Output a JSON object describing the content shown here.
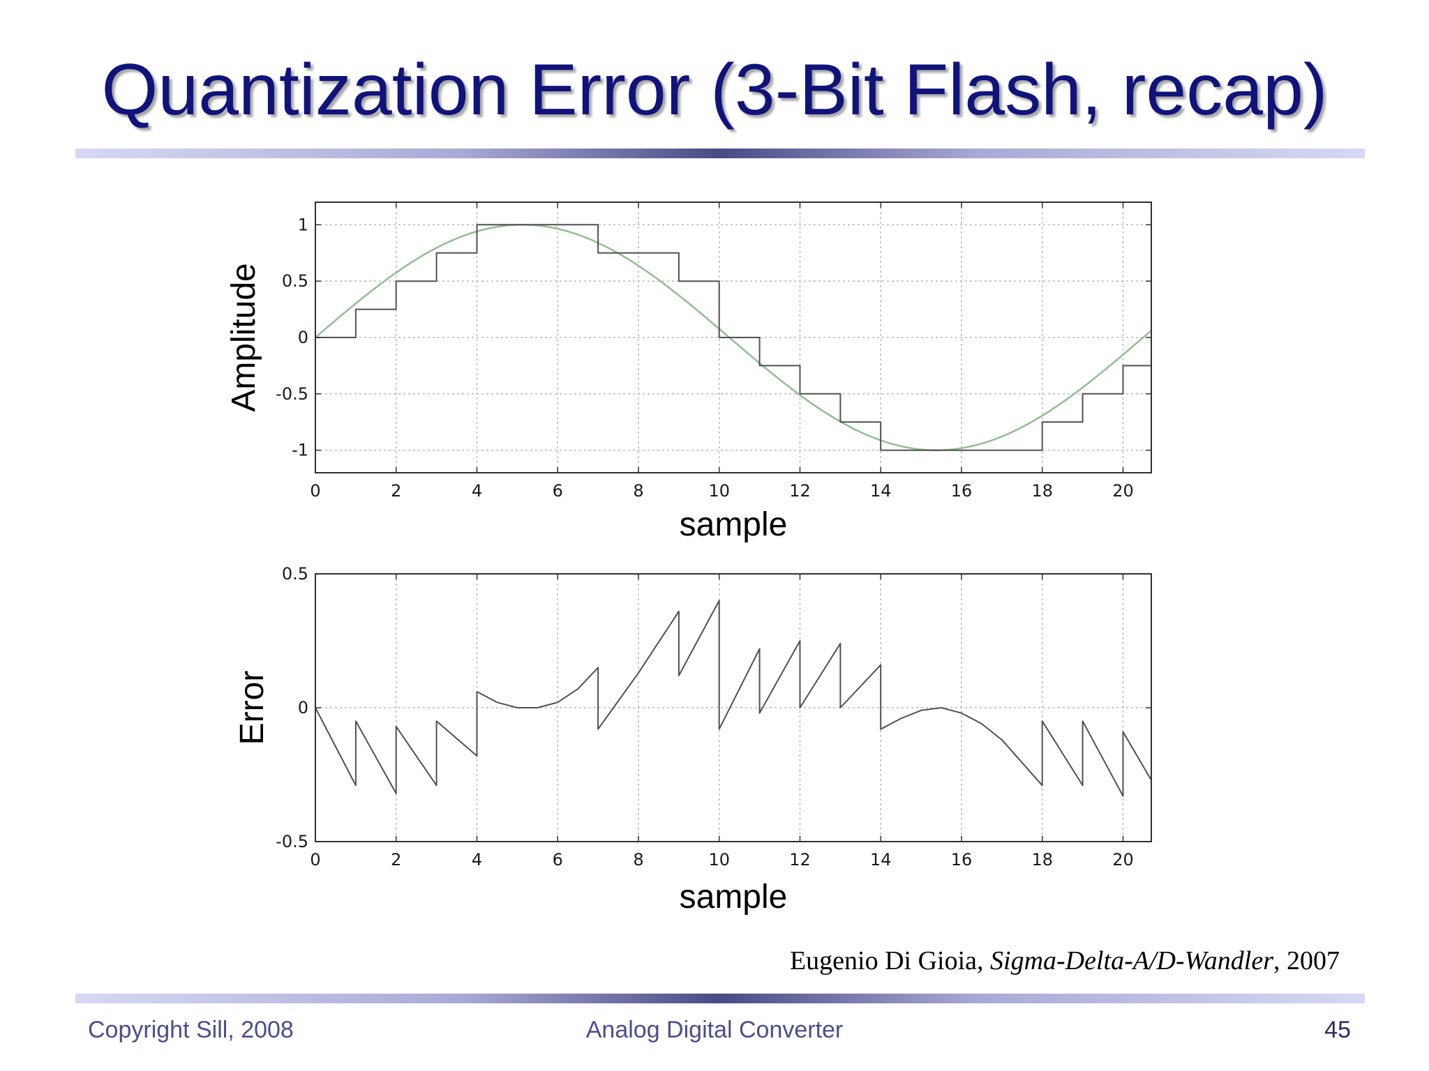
{
  "slide": {
    "title": "Quantization Error (3-Bit Flash, recap)",
    "citation": {
      "author": "Eugenio Di Gioia",
      "sep": ", ",
      "work": "Sigma-Delta-A/D-Wandler",
      "year_sep": ", ",
      "year": "2007"
    },
    "footer": {
      "left": "Copyright Sill, 2008",
      "center": "Analog Digital Converter",
      "page": "45"
    },
    "colors": {
      "title": "#10137a",
      "footer": "#4b4d8c",
      "rule_dark": "#494b86",
      "sine": "#8fbf8f",
      "staircase": "#505050"
    }
  },
  "chart_data": [
    {
      "type": "line",
      "xlabel": "sample",
      "ylabel": "Amplitude",
      "xlim": [
        0,
        20.7
      ],
      "ylim": [
        -1.2,
        1.2
      ],
      "xticks": [
        0,
        2,
        4,
        6,
        8,
        10,
        12,
        14,
        16,
        18,
        20
      ],
      "yticks": [
        1,
        0.5,
        0,
        -0.5,
        -1
      ],
      "ytick_labels": [
        "1",
        "0.5",
        "0",
        "-0.5",
        "-1"
      ],
      "grid": true,
      "series": [
        {
          "kind": "sine",
          "period": 20.5,
          "amplitude": 1,
          "x_start": 0,
          "x_end": 20.7
        },
        {
          "kind": "staircase",
          "steps": [
            [
              0,
              0
            ],
            [
              1,
              0.25
            ],
            [
              2,
              0.5
            ],
            [
              3,
              0.75
            ],
            [
              4,
              1
            ],
            [
              5,
              1
            ],
            [
              6,
              1
            ],
            [
              7,
              0.75
            ],
            [
              8,
              0.75
            ],
            [
              9,
              0.5
            ],
            [
              10,
              0
            ],
            [
              11,
              -0.25
            ],
            [
              12,
              -0.5
            ],
            [
              13,
              -0.75
            ],
            [
              14,
              -1
            ],
            [
              15,
              -1
            ],
            [
              16,
              -1
            ],
            [
              17,
              -1
            ],
            [
              18,
              -0.75
            ],
            [
              19,
              -0.5
            ],
            [
              20,
              -0.25
            ]
          ],
          "x_end": 20.7
        }
      ]
    },
    {
      "type": "line",
      "xlabel": "sample",
      "ylabel": "Error",
      "xlim": [
        0,
        20.7
      ],
      "ylim": [
        -0.5,
        0.5
      ],
      "xticks": [
        0,
        2,
        4,
        6,
        8,
        10,
        12,
        14,
        16,
        18,
        20
      ],
      "yticks": [
        0.5,
        0,
        -0.5
      ],
      "ytick_labels": [
        "0.5",
        "0",
        "-0.5"
      ],
      "grid": true,
      "series": [
        {
          "kind": "error",
          "points": [
            [
              0,
              0
            ],
            [
              1,
              -0.29
            ],
            [
              1,
              -0.05
            ],
            [
              2,
              -0.32
            ],
            [
              2,
              -0.07
            ],
            [
              3,
              -0.29
            ],
            [
              3,
              -0.05
            ],
            [
              4,
              -0.18
            ],
            [
              4,
              0.06
            ],
            [
              4.5,
              0.02
            ],
            [
              5,
              0
            ],
            [
              5.5,
              0
            ],
            [
              6,
              0.02
            ],
            [
              6.5,
              0.07
            ],
            [
              7,
              0.15
            ],
            [
              7,
              -0.08
            ],
            [
              8,
              0.13
            ],
            [
              9,
              0.36
            ],
            [
              9,
              0.12
            ],
            [
              10,
              0.4
            ],
            [
              10,
              -0.08
            ],
            [
              11,
              0.22
            ],
            [
              11,
              -0.02
            ],
            [
              12,
              0.25
            ],
            [
              12,
              0
            ],
            [
              13,
              0.24
            ],
            [
              13,
              0
            ],
            [
              14,
              0.16
            ],
            [
              14,
              -0.08
            ],
            [
              14.5,
              -0.04
            ],
            [
              15,
              -0.01
            ],
            [
              15.5,
              0
            ],
            [
              16,
              -0.02
            ],
            [
              16.5,
              -0.06
            ],
            [
              17,
              -0.12
            ],
            [
              18,
              -0.29
            ],
            [
              18,
              -0.05
            ],
            [
              19,
              -0.29
            ],
            [
              19,
              -0.05
            ],
            [
              20,
              -0.33
            ],
            [
              20,
              -0.09
            ],
            [
              20.7,
              -0.27
            ]
          ]
        }
      ]
    }
  ]
}
